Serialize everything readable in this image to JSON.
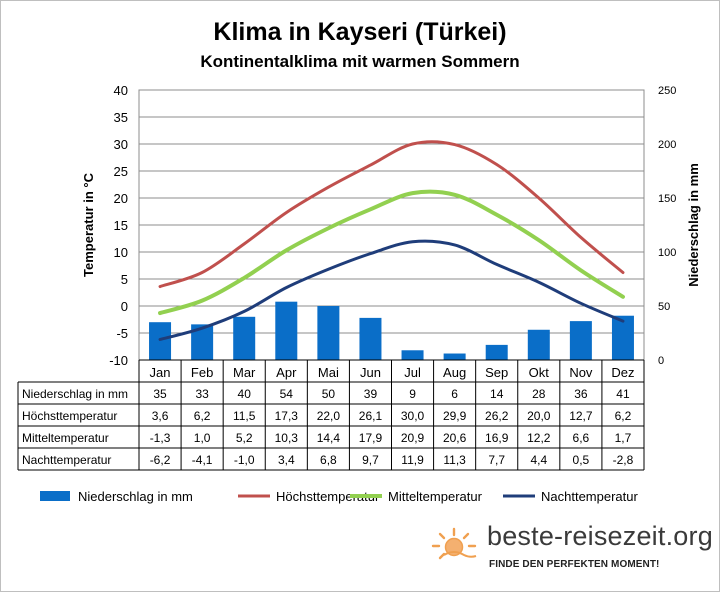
{
  "title": "Klima in Kayseri (Türkei)",
  "subtitle": "Kontinentalklima mit warmen Sommern",
  "brand": {
    "name": "beste-reisezeit.org",
    "slogan": "FINDE DEN PERFEKTEN MOMENT!",
    "logo_icon": "sun-icon",
    "accent_color": "#f0a050"
  },
  "chart_data": {
    "type": "bar+line",
    "title": "Klima in Kayseri (Türkei)",
    "subtitle": "Kontinentalklima mit warmen Sommern",
    "categories": [
      "Jan",
      "Feb",
      "Mar",
      "Apr",
      "Mai",
      "Jun",
      "Jul",
      "Aug",
      "Sep",
      "Okt",
      "Nov",
      "Dez"
    ],
    "y_left": {
      "label": "Temperatur in °C",
      "min": -10,
      "max": 40,
      "ticks": [
        -10,
        -5,
        0,
        5,
        10,
        15,
        20,
        25,
        30,
        35,
        40
      ]
    },
    "y_right": {
      "label": "Niederschlag in mm",
      "min": 0,
      "max": 250,
      "ticks": [
        0,
        50,
        100,
        150,
        200,
        250
      ]
    },
    "grid": true,
    "legend_position": "bottom",
    "series": [
      {
        "name": "Niederschlag in mm",
        "type": "bar",
        "axis": "right",
        "color": "#0a6ec8",
        "values": [
          35,
          33,
          40,
          54,
          50,
          39,
          9,
          6,
          14,
          28,
          36,
          41
        ],
        "labels": [
          "35",
          "33",
          "40",
          "54",
          "50",
          "39",
          "9",
          "6",
          "14",
          "28",
          "36",
          "41"
        ]
      },
      {
        "name": "Höchsttemperatur",
        "type": "line",
        "axis": "left",
        "color": "#c0504d",
        "values": [
          3.6,
          6.2,
          11.5,
          17.3,
          22.0,
          26.1,
          30.0,
          29.9,
          26.2,
          20.0,
          12.7,
          6.2
        ],
        "labels": [
          "3,6",
          "6,2",
          "11,5",
          "17,3",
          "22,0",
          "26,1",
          "30,0",
          "29,9",
          "26,2",
          "20,0",
          "12,7",
          "6,2"
        ]
      },
      {
        "name": "Mitteltemperatur",
        "type": "line",
        "axis": "left",
        "color": "#92d050",
        "values": [
          -1.3,
          1.0,
          5.2,
          10.3,
          14.4,
          17.9,
          20.9,
          20.6,
          16.9,
          12.2,
          6.6,
          1.7
        ],
        "labels": [
          "-1,3",
          "1,0",
          "5,2",
          "10,3",
          "14,4",
          "17,9",
          "20,9",
          "20,6",
          "16,9",
          "12,2",
          "6,6",
          "1,7"
        ]
      },
      {
        "name": "Nachttemperatur",
        "type": "line",
        "axis": "left",
        "color": "#1f3d7a",
        "values": [
          -6.2,
          -4.1,
          -1.0,
          3.4,
          6.8,
          9.7,
          11.9,
          11.3,
          7.7,
          4.4,
          0.5,
          -2.8
        ],
        "labels": [
          "-6,2",
          "-4,1",
          "-1,0",
          "3,4",
          "6,8",
          "9,7",
          "11,9",
          "11,3",
          "7,7",
          "4,4",
          "0,5",
          "-2,8"
        ]
      }
    ]
  }
}
